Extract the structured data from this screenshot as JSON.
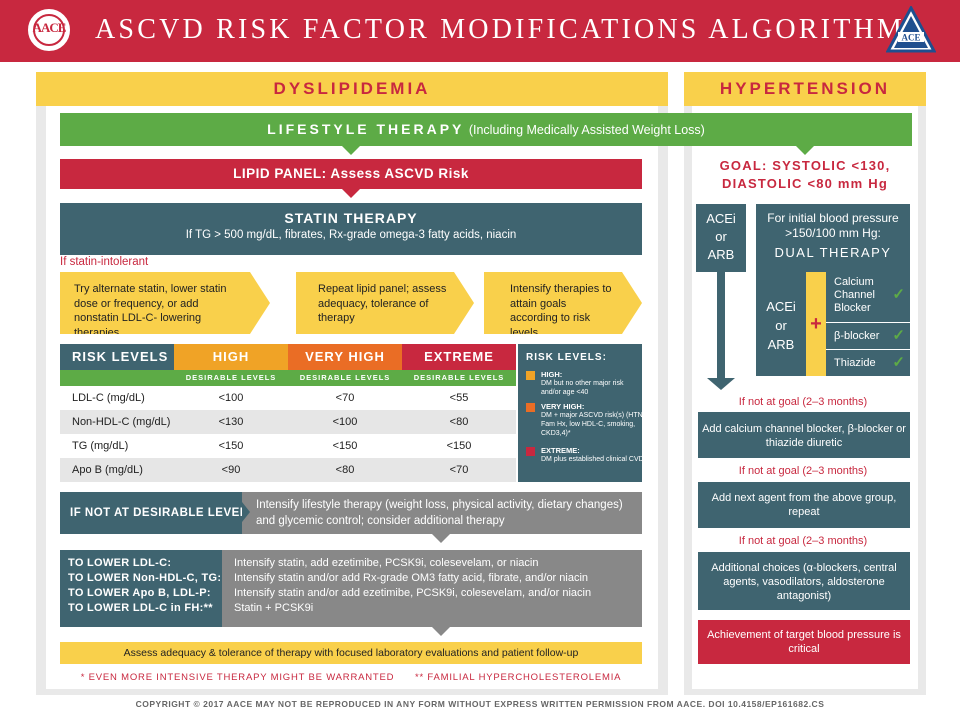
{
  "header": {
    "logo_text": "AACE",
    "title": "ASCVD RISK FACTOR MODIFICATIONS ALGORITHM",
    "right_logo_text": "ACE"
  },
  "dyslipidemia": {
    "heading": "DYSLIPIDEMIA",
    "lipid_panel": "LIPID PANEL: Assess ASCVD Risk",
    "statin_title": "STATIN THERAPY",
    "statin_sub": "If TG > 500 mg/dL, fibrates, Rx-grade omega-3 fatty acids, niacin",
    "statin_intolerant": "If statin-intolerant",
    "steps": [
      {
        "text": "Try alternate statin, lower statin dose or frequency, or add nonstatin LDL-C- lowering therapies"
      },
      {
        "text": "Repeat lipid panel; assess adequacy, tolerance of therapy"
      },
      {
        "text": "Intensify therapies to attain goals according to risk levels"
      }
    ],
    "risk_table": {
      "label": "RISK LEVELS",
      "columns": [
        "HIGH",
        "VERY HIGH",
        "EXTREME"
      ],
      "sub_label": "DESIRABLE LEVELS",
      "rows": [
        {
          "name": "LDL-C (mg/dL)",
          "values": [
            "<100",
            "<70",
            "<55"
          ]
        },
        {
          "name": "Non-HDL-C (mg/dL)",
          "values": [
            "<130",
            "<100",
            "<80"
          ]
        },
        {
          "name": "TG (mg/dL)",
          "values": [
            "<150",
            "<150",
            "<150"
          ]
        },
        {
          "name": "Apo B (mg/dL)",
          "values": [
            "<90",
            "<80",
            "<70"
          ]
        }
      ]
    },
    "legend": {
      "title": "RISK LEVELS:",
      "items": [
        {
          "title": "HIGH:",
          "desc": "DM but no other major risk and/or age <40",
          "color": "#f0a326"
        },
        {
          "title": "VERY HIGH:",
          "desc": "DM + major ASCVD risk(s) (HTN, Fam Hx, low HDL-C, smoking, CKD3,4)*",
          "color": "#ea6d25"
        },
        {
          "title": "EXTREME:",
          "desc": "DM plus established clinical CVD",
          "color": "#c8283f"
        }
      ]
    },
    "if_not": {
      "label": "IF NOT AT DESIRABLE LEVELS:",
      "text": "Intensify lifestyle therapy (weight loss, physical activity, dietary changes) and glycemic control; consider additional therapy"
    },
    "to_lower": [
      {
        "label": "TO LOWER LDL-C:",
        "text": "Intensify statin, add ezetimibe, PCSK9i, colesevelam, or niacin"
      },
      {
        "label": "TO LOWER Non-HDL-C, TG:",
        "text": "Intensify statin and/or add Rx-grade OM3 fatty acid, fibrate, and/or niacin"
      },
      {
        "label": "TO LOWER Apo B, LDL-P:",
        "text": "Intensify statin and/or add ezetimibe, PCSK9i, colesevelam, and/or niacin"
      },
      {
        "label": "TO LOWER LDL-C in FH:**",
        "text": "Statin + PCSK9i"
      }
    ],
    "assess": "Assess adequacy & tolerance of therapy with focused laboratory evaluations and patient follow-up",
    "footnote1": "*  EVEN MORE INTENSIVE THERAPY MIGHT BE WARRANTED",
    "footnote2": "**  FAMILIAL HYPERCHOLESTEROLEMIA"
  },
  "lifestyle": {
    "title": "LIFESTYLE THERAPY",
    "sub": "(Including Medically Assisted Weight Loss)"
  },
  "hypertension": {
    "heading": "HYPERTENSION",
    "goal_line1": "GOAL: SYSTOLIC <130,",
    "goal_line2": "DIASTOLIC <80 mm Hg",
    "acei_or_arb": [
      "ACEi",
      "or",
      "ARB"
    ],
    "initial_text": "For initial blood pressure >150/100 mm Hg:",
    "dual": "DUAL THERAPY",
    "plus": "+",
    "options": [
      "Calcium Channel Blocker",
      "β-blocker",
      "Thiazide"
    ],
    "check": "✓",
    "not_at_goal": "If not at goal (2–3 months)",
    "step1": "Add calcium channel blocker, β-blocker or thiazide diuretic",
    "step2": "Add next agent from the above group, repeat",
    "step3": "Additional choices (α-blockers, central agents, vasodilators, aldosterone antagonist)",
    "final": "Achievement of target blood pressure is critical"
  },
  "copyright": "COPYRIGHT © 2017 AACE  MAY NOT BE REPRODUCED IN ANY FORM WITHOUT EXPRESS WRITTEN PERMISSION FROM AACE.  DOI 10.4158/EP161682.CS"
}
